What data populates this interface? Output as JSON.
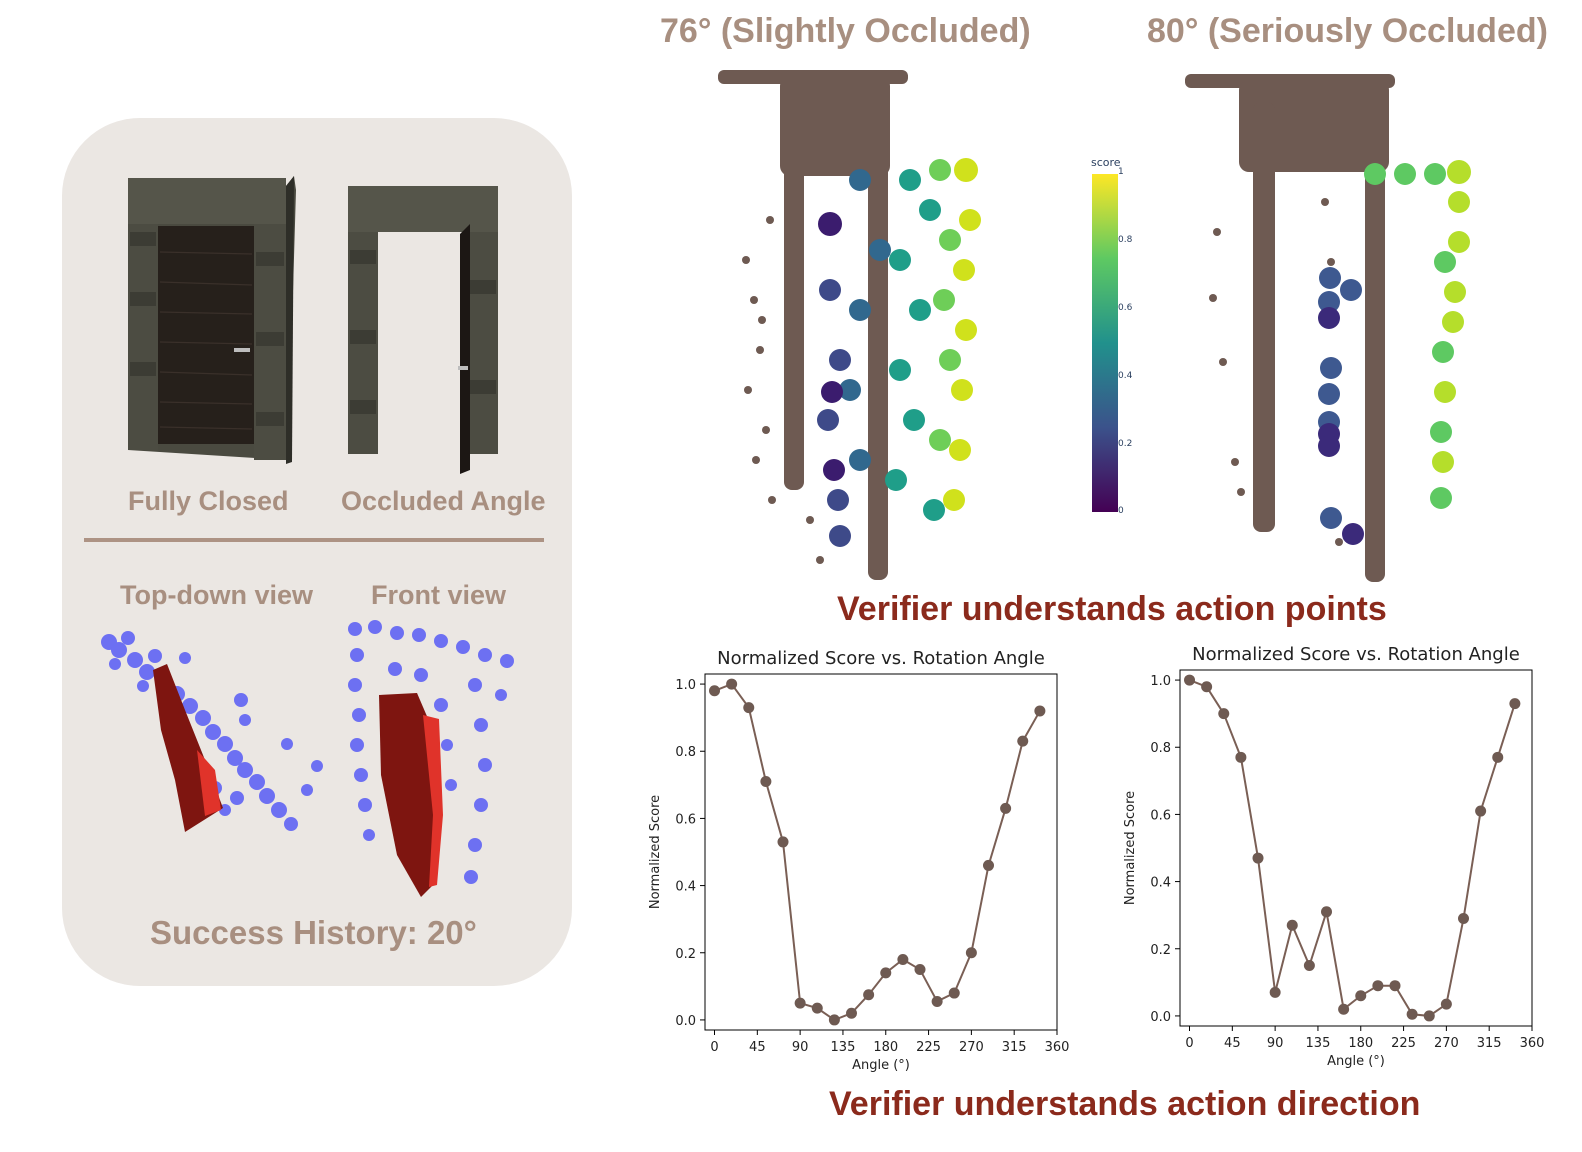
{
  "left_panel": {
    "fully_closed_label": "Fully Closed",
    "occluded_angle_label": "Occluded Angle",
    "top_down_label": "Top-down view",
    "front_view_label": "Front view",
    "success_history": "Success History: 20°"
  },
  "scatter": {
    "title_left": "76° (Slightly Occluded)",
    "title_right": "80° (Seriously Occluded)",
    "colorbar_title": "score",
    "colorbar_ticks": [
      "1",
      "0.8",
      "0.6",
      "0.4",
      "0.2",
      "0"
    ],
    "caption": "Verifier understands action points"
  },
  "line_caption": "Verifier understands action direction",
  "colors": {
    "points": "#6e5a52",
    "line": "#7a5f55",
    "blue": "#6d70f2",
    "dark_red": "#7e1510",
    "red": "#e0332a",
    "tan_text": "#a88f80",
    "red_text": "#8b2a1c"
  },
  "chart_data": [
    {
      "type": "line",
      "title": "Normalized Score vs. Rotation Angle",
      "xlabel": "Angle (°)",
      "ylabel": "Normalized Score",
      "xlim": [
        -10,
        360
      ],
      "ylim": [
        -0.03,
        1.03
      ],
      "xticks": [
        0,
        45,
        90,
        135,
        180,
        225,
        270,
        315,
        360
      ],
      "yticks": [
        0.0,
        0.2,
        0.4,
        0.6,
        0.8,
        1.0
      ],
      "grid": false,
      "x": [
        0,
        18,
        36,
        54,
        72,
        90,
        108,
        126,
        144,
        162,
        180,
        198,
        216,
        234,
        252,
        270,
        288,
        306,
        324,
        342
      ],
      "values": [
        0.98,
        1.0,
        0.93,
        0.71,
        0.53,
        0.05,
        0.035,
        0.0,
        0.02,
        0.075,
        0.14,
        0.18,
        0.15,
        0.055,
        0.08,
        0.2,
        0.46,
        0.63,
        0.83,
        0.92
      ]
    },
    {
      "type": "line",
      "title": "Normalized Score vs. Rotation Angle",
      "xlabel": "Angle (°)",
      "ylabel": "Normalized Score",
      "xlim": [
        -10,
        360
      ],
      "ylim": [
        -0.03,
        1.03
      ],
      "xticks": [
        0,
        45,
        90,
        135,
        180,
        225,
        270,
        315,
        360
      ],
      "yticks": [
        0.0,
        0.2,
        0.4,
        0.6,
        0.8,
        1.0
      ],
      "grid": false,
      "x": [
        0,
        18,
        36,
        54,
        72,
        90,
        108,
        126,
        144,
        162,
        180,
        198,
        216,
        234,
        252,
        270,
        288,
        306,
        324,
        342
      ],
      "values": [
        1.0,
        0.98,
        0.9,
        0.77,
        0.47,
        0.07,
        0.27,
        0.15,
        0.31,
        0.02,
        0.06,
        0.09,
        0.09,
        0.005,
        0.0,
        0.035,
        0.29,
        0.61,
        0.77,
        0.93
      ]
    }
  ]
}
